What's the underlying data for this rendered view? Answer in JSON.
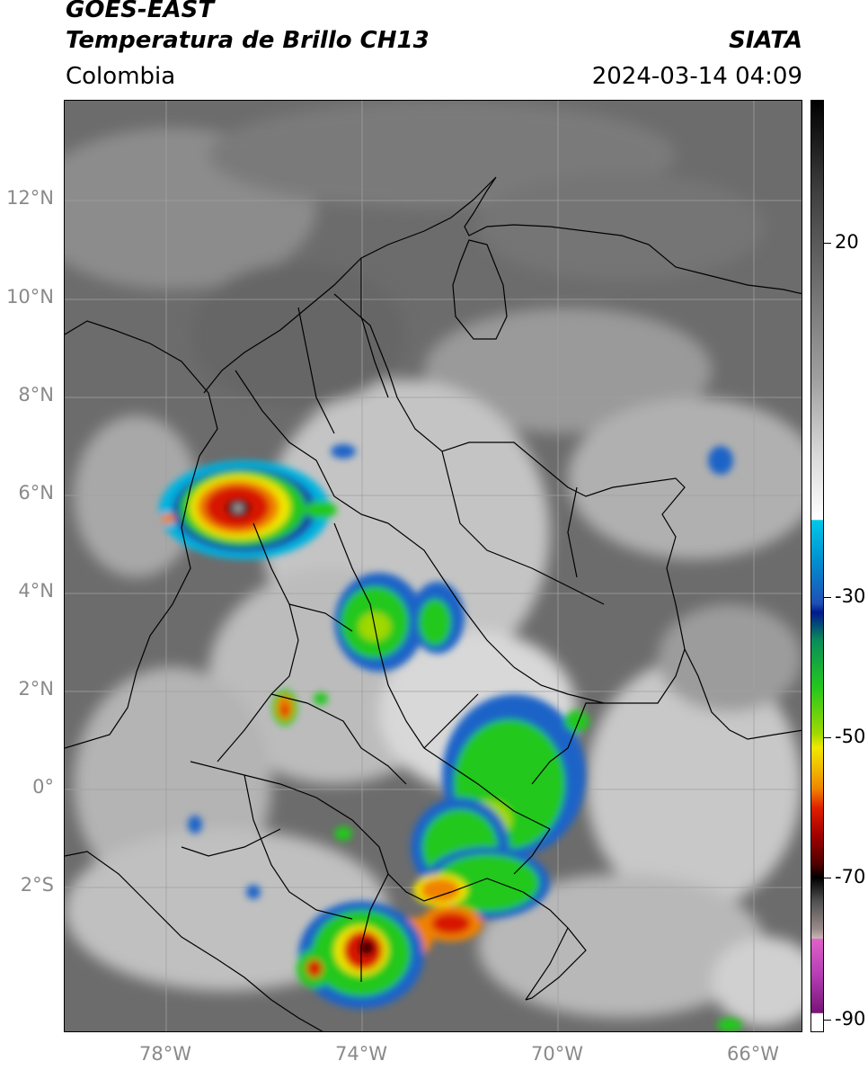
{
  "header": {
    "satellite": "GOES-EAST",
    "product": "Temperatura de Brillo CH13",
    "region": "Colombia",
    "organization": "SIATA",
    "datetime": "2024-03-14 04:09"
  },
  "map": {
    "lat_labels": [
      "12°N",
      "10°N",
      "8°N",
      "6°N",
      "4°N",
      "2°N",
      "0°",
      "2°S"
    ],
    "lon_labels": [
      "78°W",
      "74°W",
      "70°W",
      "66°W"
    ]
  },
  "colorbar": {
    "labels": [
      "20",
      "-30",
      "-50",
      "-70",
      "-90"
    ],
    "colors": {
      "warm_top": "#000000",
      "gray_high": "#ffffff",
      "cyan": "#00c8e8",
      "blue": "#001a8c",
      "green": "#22c81e",
      "yellow": "#f0e800",
      "orange": "#f08200",
      "red": "#c80000",
      "dark_red": "#500000",
      "magenta": "#e060c8",
      "purple": "#781478"
    }
  }
}
